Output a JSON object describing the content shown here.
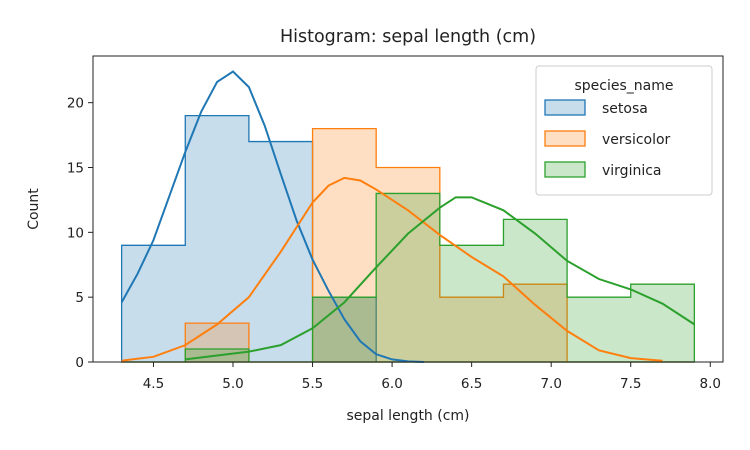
{
  "chart_data": {
    "type": "histogram",
    "title": "Histogram: sepal length (cm)",
    "xlabel": "sepal length (cm)",
    "ylabel": "Count",
    "xlim": [
      4.12,
      8.08
    ],
    "ylim": [
      0,
      23.6
    ],
    "xticks": [
      4.5,
      5.0,
      5.5,
      6.0,
      6.5,
      7.0,
      7.5,
      8.0
    ],
    "xtick_labels": [
      "4.5",
      "5.0",
      "5.5",
      "6.0",
      "6.5",
      "7.0",
      "7.5",
      "8.0"
    ],
    "yticks": [
      0,
      5,
      10,
      15,
      20
    ],
    "ytick_labels": [
      "0",
      "5",
      "10",
      "15",
      "20"
    ],
    "grid": false,
    "legend": {
      "title": "species_name",
      "placement": "top-right"
    },
    "bin_edges": [
      4.3,
      4.7,
      5.1,
      5.5,
      5.9,
      6.3,
      6.7,
      7.1,
      7.5,
      7.9
    ],
    "series": [
      {
        "name": "setosa",
        "color": "#1f77b4",
        "counts": [
          9,
          19,
          17,
          5,
          0,
          0,
          0,
          0,
          0
        ],
        "kde": [
          [
            4.3,
            4.6
          ],
          [
            4.4,
            6.8
          ],
          [
            4.5,
            9.4
          ],
          [
            4.6,
            12.8
          ],
          [
            4.7,
            16.2
          ],
          [
            4.8,
            19.3
          ],
          [
            4.9,
            21.6
          ],
          [
            5.0,
            22.4
          ],
          [
            5.1,
            21.2
          ],
          [
            5.2,
            18.2
          ],
          [
            5.3,
            14.5
          ],
          [
            5.4,
            10.9
          ],
          [
            5.5,
            7.9
          ],
          [
            5.6,
            5.5
          ],
          [
            5.7,
            3.3
          ],
          [
            5.8,
            1.6
          ],
          [
            5.9,
            0.6
          ],
          [
            6.0,
            0.2
          ],
          [
            6.1,
            0.05
          ],
          [
            6.2,
            0.0
          ]
        ]
      },
      {
        "name": "versicolor",
        "color": "#ff7f0e",
        "counts": [
          0,
          3,
          0,
          18,
          15,
          5,
          6,
          0,
          0
        ],
        "kde": [
          [
            4.3,
            0.1
          ],
          [
            4.5,
            0.4
          ],
          [
            4.7,
            1.3
          ],
          [
            4.9,
            2.9
          ],
          [
            5.1,
            5.0
          ],
          [
            5.3,
            8.5
          ],
          [
            5.5,
            12.3
          ],
          [
            5.6,
            13.6
          ],
          [
            5.7,
            14.2
          ],
          [
            5.8,
            14.0
          ],
          [
            5.9,
            13.3
          ],
          [
            6.1,
            11.7
          ],
          [
            6.3,
            9.8
          ],
          [
            6.5,
            8.1
          ],
          [
            6.7,
            6.6
          ],
          [
            6.9,
            4.4
          ],
          [
            7.1,
            2.4
          ],
          [
            7.3,
            0.9
          ],
          [
            7.5,
            0.3
          ],
          [
            7.7,
            0.1
          ]
        ]
      },
      {
        "name": "virginica",
        "color": "#2ca02c",
        "counts": [
          0,
          1,
          0,
          5,
          13,
          9,
          11,
          5,
          6
        ],
        "kde": [
          [
            4.7,
            0.2
          ],
          [
            4.9,
            0.5
          ],
          [
            5.1,
            0.8
          ],
          [
            5.3,
            1.3
          ],
          [
            5.5,
            2.6
          ],
          [
            5.7,
            4.6
          ],
          [
            5.9,
            7.3
          ],
          [
            6.1,
            9.9
          ],
          [
            6.3,
            11.9
          ],
          [
            6.4,
            12.7
          ],
          [
            6.5,
            12.7
          ],
          [
            6.7,
            11.7
          ],
          [
            6.9,
            9.9
          ],
          [
            7.1,
            7.8
          ],
          [
            7.3,
            6.4
          ],
          [
            7.5,
            5.6
          ],
          [
            7.7,
            4.5
          ],
          [
            7.9,
            2.9
          ]
        ]
      }
    ]
  }
}
